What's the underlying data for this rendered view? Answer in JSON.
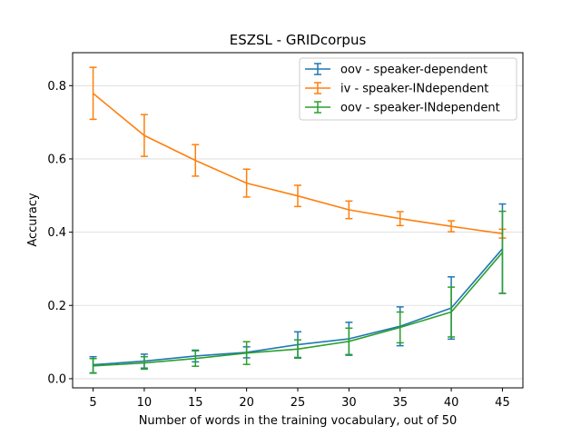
{
  "chart_data": {
    "type": "line",
    "title": "ESZSL - GRIDcorpus",
    "xlabel": "Number of words in the training vocabulary, out of 50",
    "ylabel": "Accuracy",
    "x": [
      5,
      10,
      15,
      20,
      25,
      30,
      35,
      40,
      45
    ],
    "xticks": [
      "5",
      "10",
      "15",
      "20",
      "25",
      "30",
      "35",
      "40",
      "45"
    ],
    "yticks": [
      "0.0",
      "0.2",
      "0.4",
      "0.6",
      "0.8"
    ],
    "xlim": [
      3,
      47
    ],
    "ylim": [
      -0.025,
      0.89
    ],
    "grid": "horizontal",
    "legend_position": "top-right",
    "series": [
      {
        "name": "oov - speaker-dependent",
        "color": "#1f77b4",
        "values": [
          0.038,
          0.048,
          0.062,
          0.072,
          0.093,
          0.109,
          0.143,
          0.193,
          0.355
        ],
        "errors": [
          0.022,
          0.019,
          0.016,
          0.015,
          0.035,
          0.045,
          0.053,
          0.085,
          0.122
        ]
      },
      {
        "name": "iv - speaker-INdependent",
        "color": "#ff7f0e",
        "values": [
          0.779,
          0.664,
          0.596,
          0.534,
          0.499,
          0.461,
          0.437,
          0.416,
          0.396
        ],
        "errors": [
          0.071,
          0.057,
          0.043,
          0.038,
          0.029,
          0.024,
          0.019,
          0.015,
          0.012
        ]
      },
      {
        "name": "oov - speaker-INdependent",
        "color": "#2ca02c",
        "values": [
          0.035,
          0.043,
          0.055,
          0.07,
          0.081,
          0.102,
          0.14,
          0.182,
          0.345
        ],
        "errors": [
          0.02,
          0.017,
          0.021,
          0.031,
          0.025,
          0.036,
          0.042,
          0.068,
          0.112
        ]
      }
    ]
  }
}
